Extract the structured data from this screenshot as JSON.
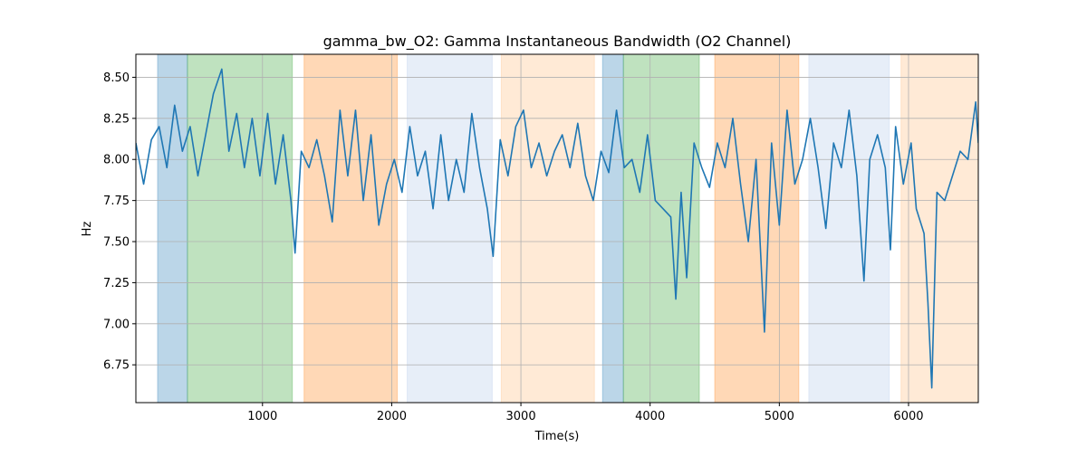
{
  "chart_data": {
    "type": "line",
    "title": "gamma_bw_O2: Gamma Instantaneous Bandwidth (O2 Channel)",
    "xlabel": "Time(s)",
    "ylabel": "Hz",
    "color": "#1f77b4",
    "grid": true,
    "xlim": [
      20,
      6540
    ],
    "ylim": [
      6.52,
      8.64
    ],
    "xticks": [
      1000,
      2000,
      3000,
      4000,
      5000,
      6000
    ],
    "yticks": [
      6.75,
      {
        "value": 7.0,
        "label": "7.00"
      },
      7.25,
      {
        "value": 7.5,
        "label": "7.50"
      },
      7.75,
      {
        "value": 8.0,
        "label": "8.00"
      },
      8.25,
      {
        "value": 8.5,
        "label": "8.50"
      }
    ],
    "span_alpha": 0.3,
    "spans": [
      {
        "start": 188,
        "end": 419,
        "color": "#1f77b4"
      },
      {
        "start": 419,
        "end": 1231,
        "color": "#2ca02c"
      },
      {
        "start": 1322,
        "end": 2043,
        "color": "#ff7f0e"
      },
      {
        "start": 2120,
        "end": 2778,
        "color": "#aec7e8"
      },
      {
        "start": 2848,
        "end": 3569,
        "color": "#ffbb78"
      },
      {
        "start": 3632,
        "end": 3793,
        "color": "#1f77b4"
      },
      {
        "start": 3793,
        "end": 4381,
        "color": "#2ca02c"
      },
      {
        "start": 4500,
        "end": 5151,
        "color": "#ff7f0e"
      },
      {
        "start": 5228,
        "end": 5851,
        "color": "#aec7e8"
      },
      {
        "start": 5942,
        "end": 6540,
        "color": "#ffbb78"
      }
    ],
    "x": [
      20,
      80,
      140,
      200,
      260,
      320,
      380,
      440,
      500,
      560,
      620,
      685,
      740,
      800,
      860,
      920,
      980,
      1040,
      1100,
      1160,
      1220,
      1252,
      1300,
      1360,
      1420,
      1480,
      1540,
      1600,
      1660,
      1720,
      1780,
      1840,
      1900,
      1960,
      2020,
      2080,
      2140,
      2200,
      2260,
      2320,
      2380,
      2440,
      2500,
      2560,
      2620,
      2680,
      2740,
      2785,
      2840,
      2900,
      2960,
      3020,
      3080,
      3140,
      3200,
      3260,
      3320,
      3380,
      3440,
      3500,
      3560,
      3620,
      3680,
      3740,
      3800,
      3860,
      3920,
      3980,
      4040,
      4100,
      4160,
      4199,
      4240,
      4283,
      4340,
      4400,
      4460,
      4520,
      4580,
      4640,
      4700,
      4760,
      4820,
      4885,
      4940,
      5000,
      5060,
      5120,
      5180,
      5240,
      5300,
      5360,
      5420,
      5480,
      5540,
      5600,
      5655,
      5700,
      5760,
      5820,
      5860,
      5900,
      5960,
      6020,
      6060,
      6120,
      6150,
      6180,
      6220,
      6280,
      6340,
      6400,
      6460,
      6520,
      6540
    ],
    "values": [
      8.1,
      7.85,
      8.12,
      8.2,
      7.95,
      8.33,
      8.05,
      8.2,
      7.9,
      8.15,
      8.4,
      8.55,
      8.05,
      8.28,
      7.95,
      8.25,
      7.9,
      8.28,
      7.85,
      8.15,
      7.75,
      7.43,
      8.05,
      7.95,
      8.12,
      7.9,
      7.62,
      8.3,
      7.9,
      8.3,
      7.75,
      8.15,
      7.6,
      7.85,
      8.0,
      7.8,
      8.2,
      7.9,
      8.05,
      7.7,
      8.15,
      7.75,
      8.0,
      7.8,
      8.28,
      7.95,
      7.7,
      7.41,
      8.12,
      7.9,
      8.2,
      8.3,
      7.95,
      8.1,
      7.9,
      8.05,
      8.15,
      7.95,
      8.22,
      7.9,
      7.75,
      8.05,
      7.92,
      8.3,
      7.95,
      8.0,
      7.8,
      8.15,
      7.75,
      7.7,
      7.65,
      7.15,
      7.8,
      7.28,
      8.1,
      7.95,
      7.83,
      8.1,
      7.95,
      8.25,
      7.85,
      7.5,
      8.0,
      6.95,
      8.1,
      7.6,
      8.3,
      7.85,
      8.0,
      8.25,
      7.95,
      7.58,
      8.1,
      7.95,
      8.3,
      7.9,
      7.26,
      8.0,
      8.15,
      7.95,
      7.45,
      8.2,
      7.85,
      8.1,
      7.7,
      7.55,
      7.13,
      6.61,
      7.8,
      7.75,
      7.9,
      8.05,
      8.0,
      8.35,
      8.1
    ]
  }
}
